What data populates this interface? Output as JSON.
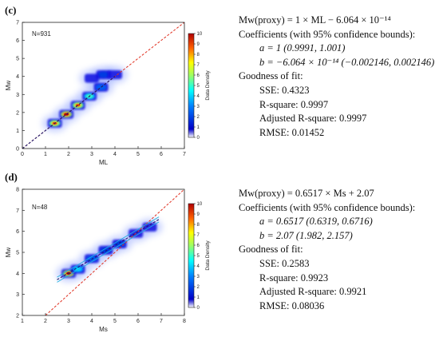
{
  "panels": [
    {
      "label": "(c)",
      "n_label": "N=931",
      "stats": {
        "equation": "Mw(proxy) = 1 × ML − 6.064 × 10⁻¹⁴",
        "coeff_header": "Coefficients (with 95% confidence bounds):",
        "coef_a": "a = 1 (0.9991, 1.001)",
        "coef_b": "b = −6.064 × 10⁻¹⁴ (−0.002146, 0.002146)",
        "gof_header": "Goodness of fit:",
        "sse": "SSE: 0.4323",
        "rsq": "R-square: 0.9997",
        "adjrsq": "Adjusted R-square: 0.9997",
        "rmse": "RMSE: 0.01452"
      }
    },
    {
      "label": "(d)",
      "n_label": "N=48",
      "stats": {
        "equation": "Mw(proxy) = 0.6517 × Ms + 2.07",
        "coeff_header": "Coefficients (with 95% confidence bounds):",
        "coef_a": "a = 0.6517 (0.6319, 0.6716)",
        "coef_b": "b = 2.07 (1.982, 2.157)",
        "gof_header": "Goodness of fit:",
        "sse": "SSE: 0.2583",
        "rsq": "R-square: 0.9923",
        "adjrsq": "Adjusted R-square: 0.9921",
        "rmse": "RMSE: 0.08036"
      }
    }
  ],
  "chart_data": [
    {
      "type": "heatmap",
      "xlabel": "ML",
      "ylabel": "Mw",
      "xlim": [
        0,
        7
      ],
      "ylim": [
        0,
        7
      ],
      "xticks": [
        0,
        1,
        2,
        3,
        4,
        5,
        6,
        7
      ],
      "yticks": [
        0,
        1,
        2,
        3,
        4,
        5,
        6,
        7
      ],
      "colorbar": {
        "label": "Data Density",
        "range": [
          0,
          10
        ],
        "ticks": [
          0,
          1,
          2,
          3,
          4,
          5,
          6,
          7,
          8,
          9,
          10
        ]
      },
      "fit": {
        "slope": 1,
        "intercept": 0,
        "x_range": [
          0.7,
          4.0
        ]
      },
      "one_to_one": true,
      "density_clusters": [
        {
          "x": 1.4,
          "y": 1.4,
          "density": 9
        },
        {
          "x": 1.9,
          "y": 1.9,
          "density": 10
        },
        {
          "x": 2.4,
          "y": 2.4,
          "density": 9
        },
        {
          "x": 2.9,
          "y": 2.9,
          "density": 6
        },
        {
          "x": 3.4,
          "y": 3.4,
          "density": 4
        },
        {
          "x": 3.5,
          "y": 4.1,
          "density": 3
        },
        {
          "x": 4.0,
          "y": 4.1,
          "density": 2
        },
        {
          "x": 3.0,
          "y": 3.9,
          "density": 1
        }
      ]
    },
    {
      "type": "heatmap",
      "xlabel": "Ms",
      "ylabel": "Mw",
      "xlim": [
        1,
        8
      ],
      "ylim": [
        2,
        8
      ],
      "xticks": [
        1,
        2,
        3,
        4,
        5,
        6,
        7,
        8
      ],
      "yticks": [
        2,
        3,
        4,
        5,
        6,
        7,
        8
      ],
      "colorbar": {
        "label": "Data Density",
        "range": [
          0,
          10
        ],
        "ticks": [
          0,
          1,
          2,
          3,
          4,
          5,
          6,
          7,
          8,
          9,
          10
        ]
      },
      "fit": {
        "slope": 0.6517,
        "intercept": 2.07,
        "x_range": [
          2.5,
          6.9
        ]
      },
      "one_to_one": true,
      "density_clusters": [
        {
          "x": 3.0,
          "y": 4.0,
          "density": 10
        },
        {
          "x": 3.4,
          "y": 4.2,
          "density": 5
        },
        {
          "x": 4.0,
          "y": 4.7,
          "density": 4
        },
        {
          "x": 4.6,
          "y": 5.1,
          "density": 3
        },
        {
          "x": 5.2,
          "y": 5.4,
          "density": 3
        },
        {
          "x": 5.9,
          "y": 5.9,
          "density": 2
        },
        {
          "x": 6.5,
          "y": 6.2,
          "density": 2
        }
      ]
    }
  ]
}
